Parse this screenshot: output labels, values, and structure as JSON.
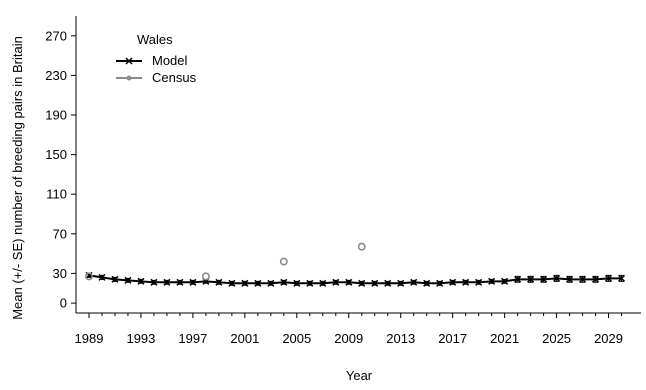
{
  "chart_data": {
    "type": "line",
    "title": "",
    "xlabel": "Year",
    "ylabel": "Mean (+/- SE) number of breeding pairs in Britain",
    "xlim": [
      1988,
      2031.5
    ],
    "ylim": [
      -10,
      290
    ],
    "x_ticks": [
      1989,
      1993,
      1997,
      2001,
      2005,
      2009,
      2013,
      2017,
      2021,
      2025,
      2029
    ],
    "y_ticks": [
      0,
      30,
      70,
      110,
      150,
      190,
      230,
      270
    ],
    "legend": {
      "title": "Wales",
      "placement": "top-left",
      "entries": [
        "Model",
        "Census"
      ]
    },
    "colors": {
      "model": "#000000",
      "census": "#8c8c8c"
    },
    "series": [
      {
        "name": "Model",
        "marker": "x",
        "x": [
          1989,
          1990,
          1991,
          1992,
          1993,
          1994,
          1995,
          1996,
          1997,
          1998,
          1999,
          2000,
          2001,
          2002,
          2003,
          2004,
          2005,
          2006,
          2007,
          2008,
          2009,
          2010,
          2011,
          2012,
          2013,
          2014,
          2015,
          2016,
          2017,
          2018,
          2019,
          2020,
          2021,
          2022,
          2023,
          2024,
          2025,
          2026,
          2027,
          2028,
          2029,
          2030
        ],
        "y": [
          28,
          26,
          24,
          23,
          22,
          21,
          21,
          21,
          21,
          22,
          21,
          20,
          20,
          20,
          20,
          21,
          20,
          20,
          20,
          21,
          21,
          20,
          20,
          20,
          20,
          21,
          20,
          20,
          21,
          21,
          21,
          22,
          22,
          24,
          24,
          24,
          25,
          24,
          24,
          24,
          25,
          25
        ],
        "se": [
          2,
          2,
          2,
          2,
          2,
          2,
          2,
          2,
          2,
          2,
          2,
          2,
          2,
          2,
          2,
          2,
          2,
          2,
          2,
          2,
          2,
          2,
          2,
          2,
          2,
          2,
          2,
          2,
          2,
          2,
          2,
          2,
          2,
          3,
          3,
          3,
          3,
          3,
          3,
          3,
          3,
          3
        ]
      },
      {
        "name": "Census",
        "marker": "circle",
        "x": [
          1989,
          1998,
          2004,
          2010
        ],
        "y": [
          27,
          27,
          42,
          57
        ]
      }
    ]
  }
}
